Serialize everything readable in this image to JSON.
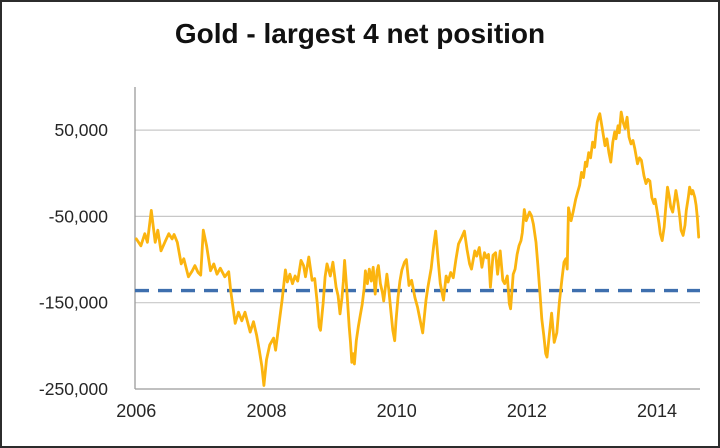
{
  "window": {
    "background": "#FFFFFF",
    "border_color": "#2C2C2C"
  },
  "chart_data": {
    "type": "line",
    "title": "Gold - largest 4 net position",
    "xlabel": "",
    "ylabel": "",
    "legend": "none",
    "x_axis": {
      "range": [
        2005.98,
        2014.66
      ],
      "ticks": [
        2006,
        2008,
        2010,
        2012,
        2014
      ],
      "labels": [
        "2006",
        "2008",
        "2010",
        "2012",
        "2014"
      ],
      "label_color": "#262626"
    },
    "y_axis": {
      "range": [
        -250000,
        100000
      ],
      "ticks": [
        50000,
        -50000,
        -150000,
        -250000
      ],
      "labels": [
        "50,000",
        "-50,000",
        "-150,000",
        "-250,000"
      ],
      "gridlines": [
        50000,
        -50000,
        -150000
      ],
      "label_color": "#262626"
    },
    "plot": {
      "background": "#FFFFFF",
      "gridline_color": "#C8C8C8",
      "axis_color": "#9B9B9B",
      "grid_on": true
    },
    "reference_line": {
      "name": "average-reference-line",
      "value": -136000,
      "color": "#3E6FAE",
      "style": "dashed"
    },
    "series": [
      {
        "name": "Largest 4 net position",
        "color": "#FBB40F",
        "points": [
          [
            2006.0,
            -76000
          ],
          [
            2006.07,
            -84000
          ],
          [
            2006.13,
            -70000
          ],
          [
            2006.17,
            -80000
          ],
          [
            2006.23,
            -43000
          ],
          [
            2006.29,
            -80000
          ],
          [
            2006.33,
            -66000
          ],
          [
            2006.38,
            -90000
          ],
          [
            2006.45,
            -78000
          ],
          [
            2006.5,
            -70000
          ],
          [
            2006.55,
            -76000
          ],
          [
            2006.58,
            -71000
          ],
          [
            2006.63,
            -80000
          ],
          [
            2006.69,
            -105000
          ],
          [
            2006.73,
            -99000
          ],
          [
            2006.8,
            -120000
          ],
          [
            2006.86,
            -113000
          ],
          [
            2006.9,
            -107000
          ],
          [
            2006.95,
            -115000
          ],
          [
            2006.99,
            -118000
          ],
          [
            2007.03,
            -66000
          ],
          [
            2007.08,
            -84000
          ],
          [
            2007.14,
            -113000
          ],
          [
            2007.19,
            -105000
          ],
          [
            2007.24,
            -117000
          ],
          [
            2007.29,
            -110000
          ],
          [
            2007.36,
            -120000
          ],
          [
            2007.42,
            -114000
          ],
          [
            2007.45,
            -136000
          ],
          [
            2007.52,
            -174000
          ],
          [
            2007.57,
            -161000
          ],
          [
            2007.62,
            -171000
          ],
          [
            2007.67,
            -161000
          ],
          [
            2007.75,
            -184000
          ],
          [
            2007.8,
            -172000
          ],
          [
            2007.85,
            -188000
          ],
          [
            2007.89,
            -205000
          ],
          [
            2007.93,
            -224000
          ],
          [
            2007.96,
            -246000
          ],
          [
            2008.0,
            -216000
          ],
          [
            2008.05,
            -199000
          ],
          [
            2008.11,
            -191000
          ],
          [
            2008.14,
            -205000
          ],
          [
            2008.2,
            -170000
          ],
          [
            2008.24,
            -147000
          ],
          [
            2008.29,
            -112000
          ],
          [
            2008.32,
            -126000
          ],
          [
            2008.36,
            -117000
          ],
          [
            2008.4,
            -128000
          ],
          [
            2008.44,
            -119000
          ],
          [
            2008.48,
            -125000
          ],
          [
            2008.53,
            -101000
          ],
          [
            2008.57,
            -107000
          ],
          [
            2008.6,
            -120000
          ],
          [
            2008.65,
            -97000
          ],
          [
            2008.7,
            -124000
          ],
          [
            2008.74,
            -122000
          ],
          [
            2008.78,
            -151000
          ],
          [
            2008.81,
            -178000
          ],
          [
            2008.83,
            -182000
          ],
          [
            2008.87,
            -151000
          ],
          [
            2008.9,
            -120000
          ],
          [
            2008.93,
            -105000
          ],
          [
            2008.98,
            -119000
          ],
          [
            2009.02,
            -103000
          ],
          [
            2009.07,
            -132000
          ],
          [
            2009.1,
            -142000
          ],
          [
            2009.13,
            -163000
          ],
          [
            2009.16,
            -144000
          ],
          [
            2009.18,
            -126000
          ],
          [
            2009.2,
            -101000
          ],
          [
            2009.23,
            -130000
          ],
          [
            2009.25,
            -155000
          ],
          [
            2009.27,
            -178000
          ],
          [
            2009.29,
            -196000
          ],
          [
            2009.31,
            -219000
          ],
          [
            2009.33,
            -209000
          ],
          [
            2009.35,
            -221000
          ],
          [
            2009.38,
            -194000
          ],
          [
            2009.41,
            -178000
          ],
          [
            2009.44,
            -165000
          ],
          [
            2009.47,
            -152000
          ],
          [
            2009.5,
            -134000
          ],
          [
            2009.52,
            -113000
          ],
          [
            2009.55,
            -128000
          ],
          [
            2009.58,
            -111000
          ],
          [
            2009.61,
            -125000
          ],
          [
            2009.64,
            -109000
          ],
          [
            2009.67,
            -140000
          ],
          [
            2009.7,
            -113000
          ],
          [
            2009.72,
            -107000
          ],
          [
            2009.75,
            -128000
          ],
          [
            2009.78,
            -138000
          ],
          [
            2009.8,
            -148000
          ],
          [
            2009.83,
            -130000
          ],
          [
            2009.85,
            -117000
          ],
          [
            2009.88,
            -136000
          ],
          [
            2009.91,
            -159000
          ],
          [
            2009.94,
            -182000
          ],
          [
            2009.97,
            -194000
          ],
          [
            2009.99,
            -171000
          ],
          [
            2010.02,
            -144000
          ],
          [
            2010.05,
            -125000
          ],
          [
            2010.08,
            -112000
          ],
          [
            2010.12,
            -103000
          ],
          [
            2010.15,
            -100000
          ],
          [
            2010.19,
            -130000
          ],
          [
            2010.23,
            -124000
          ],
          [
            2010.28,
            -144000
          ],
          [
            2010.32,
            -155000
          ],
          [
            2010.36,
            -170000
          ],
          [
            2010.4,
            -185000
          ],
          [
            2010.45,
            -147000
          ],
          [
            2010.48,
            -132000
          ],
          [
            2010.53,
            -110000
          ],
          [
            2010.57,
            -83000
          ],
          [
            2010.6,
            -67000
          ],
          [
            2010.64,
            -103000
          ],
          [
            2010.67,
            -128000
          ],
          [
            2010.72,
            -147000
          ],
          [
            2010.76,
            -119000
          ],
          [
            2010.79,
            -126000
          ],
          [
            2010.83,
            -115000
          ],
          [
            2010.87,
            -121000
          ],
          [
            2010.91,
            -100000
          ],
          [
            2010.95,
            -82000
          ],
          [
            2011.0,
            -74000
          ],
          [
            2011.04,
            -67000
          ],
          [
            2011.08,
            -88000
          ],
          [
            2011.12,
            -105000
          ],
          [
            2011.15,
            -111000
          ],
          [
            2011.2,
            -90000
          ],
          [
            2011.23,
            -96000
          ],
          [
            2011.27,
            -86000
          ],
          [
            2011.31,
            -109000
          ],
          [
            2011.35,
            -92000
          ],
          [
            2011.38,
            -98000
          ],
          [
            2011.41,
            -94000
          ],
          [
            2011.44,
            -132000
          ],
          [
            2011.48,
            -95000
          ],
          [
            2011.52,
            -92000
          ],
          [
            2011.55,
            -117000
          ],
          [
            2011.59,
            -90000
          ],
          [
            2011.63,
            -124000
          ],
          [
            2011.66,
            -128000
          ],
          [
            2011.7,
            -119000
          ],
          [
            2011.73,
            -151000
          ],
          [
            2011.75,
            -157000
          ],
          [
            2011.79,
            -117000
          ],
          [
            2011.82,
            -111000
          ],
          [
            2011.85,
            -94000
          ],
          [
            2011.88,
            -84000
          ],
          [
            2011.91,
            -78000
          ],
          [
            2011.93,
            -69000
          ],
          [
            2011.96,
            -42000
          ],
          [
            2011.99,
            -55000
          ],
          [
            2012.01,
            -51000
          ],
          [
            2012.04,
            -45000
          ],
          [
            2012.07,
            -49000
          ],
          [
            2012.1,
            -59000
          ],
          [
            2012.14,
            -80000
          ],
          [
            2012.17,
            -107000
          ],
          [
            2012.2,
            -138000
          ],
          [
            2012.23,
            -169000
          ],
          [
            2012.26,
            -188000
          ],
          [
            2012.29,
            -209000
          ],
          [
            2012.31,
            -213000
          ],
          [
            2012.35,
            -184000
          ],
          [
            2012.38,
            -162000
          ],
          [
            2012.42,
            -196000
          ],
          [
            2012.46,
            -185000
          ],
          [
            2012.5,
            -149000
          ],
          [
            2012.54,
            -122000
          ],
          [
            2012.57,
            -103000
          ],
          [
            2012.6,
            -99000
          ],
          [
            2012.62,
            -111000
          ],
          [
            2012.64,
            -40000
          ],
          [
            2012.68,
            -55000
          ],
          [
            2012.71,
            -45000
          ],
          [
            2012.75,
            -30000
          ],
          [
            2012.78,
            -22000
          ],
          [
            2012.81,
            -14000
          ],
          [
            2012.84,
            1000
          ],
          [
            2012.87,
            -5000
          ],
          [
            2012.9,
            13000
          ],
          [
            2012.92,
            8000
          ],
          [
            2012.95,
            24000
          ],
          [
            2012.98,
            18000
          ],
          [
            2013.01,
            36000
          ],
          [
            2013.04,
            30000
          ],
          [
            2013.06,
            46000
          ],
          [
            2013.08,
            59000
          ],
          [
            2013.1,
            65000
          ],
          [
            2013.12,
            69000
          ],
          [
            2013.16,
            51000
          ],
          [
            2013.2,
            32000
          ],
          [
            2013.23,
            40000
          ],
          [
            2013.26,
            24000
          ],
          [
            2013.29,
            13000
          ],
          [
            2013.32,
            36000
          ],
          [
            2013.35,
            48000
          ],
          [
            2013.37,
            40000
          ],
          [
            2013.4,
            55000
          ],
          [
            2013.42,
            47000
          ],
          [
            2013.45,
            71000
          ],
          [
            2013.48,
            59000
          ],
          [
            2013.51,
            52000
          ],
          [
            2013.54,
            65000
          ],
          [
            2013.57,
            42000
          ],
          [
            2013.6,
            34000
          ],
          [
            2013.63,
            38000
          ],
          [
            2013.66,
            28000
          ],
          [
            2013.7,
            11000
          ],
          [
            2013.73,
            18000
          ],
          [
            2013.76,
            15000
          ],
          [
            2013.8,
            -3000
          ],
          [
            2013.83,
            -12000
          ],
          [
            2013.86,
            -7000
          ],
          [
            2013.89,
            -9000
          ],
          [
            2013.92,
            -28000
          ],
          [
            2013.95,
            -35000
          ],
          [
            2013.97,
            -30000
          ],
          [
            2014.0,
            -43000
          ],
          [
            2014.03,
            -58000
          ],
          [
            2014.05,
            -70000
          ],
          [
            2014.08,
            -78000
          ],
          [
            2014.11,
            -62000
          ],
          [
            2014.13,
            -43000
          ],
          [
            2014.16,
            -16000
          ],
          [
            2014.19,
            -28000
          ],
          [
            2014.21,
            -39000
          ],
          [
            2014.24,
            -45000
          ],
          [
            2014.27,
            -31000
          ],
          [
            2014.29,
            -20000
          ],
          [
            2014.32,
            -34000
          ],
          [
            2014.35,
            -51000
          ],
          [
            2014.37,
            -66000
          ],
          [
            2014.4,
            -72000
          ],
          [
            2014.43,
            -60000
          ],
          [
            2014.45,
            -43000
          ],
          [
            2014.48,
            -28000
          ],
          [
            2014.5,
            -16000
          ],
          [
            2014.53,
            -24000
          ],
          [
            2014.55,
            -20000
          ],
          [
            2014.58,
            -28000
          ],
          [
            2014.6,
            -37000
          ],
          [
            2014.62,
            -52000
          ],
          [
            2014.64,
            -74000
          ]
        ]
      }
    ]
  }
}
